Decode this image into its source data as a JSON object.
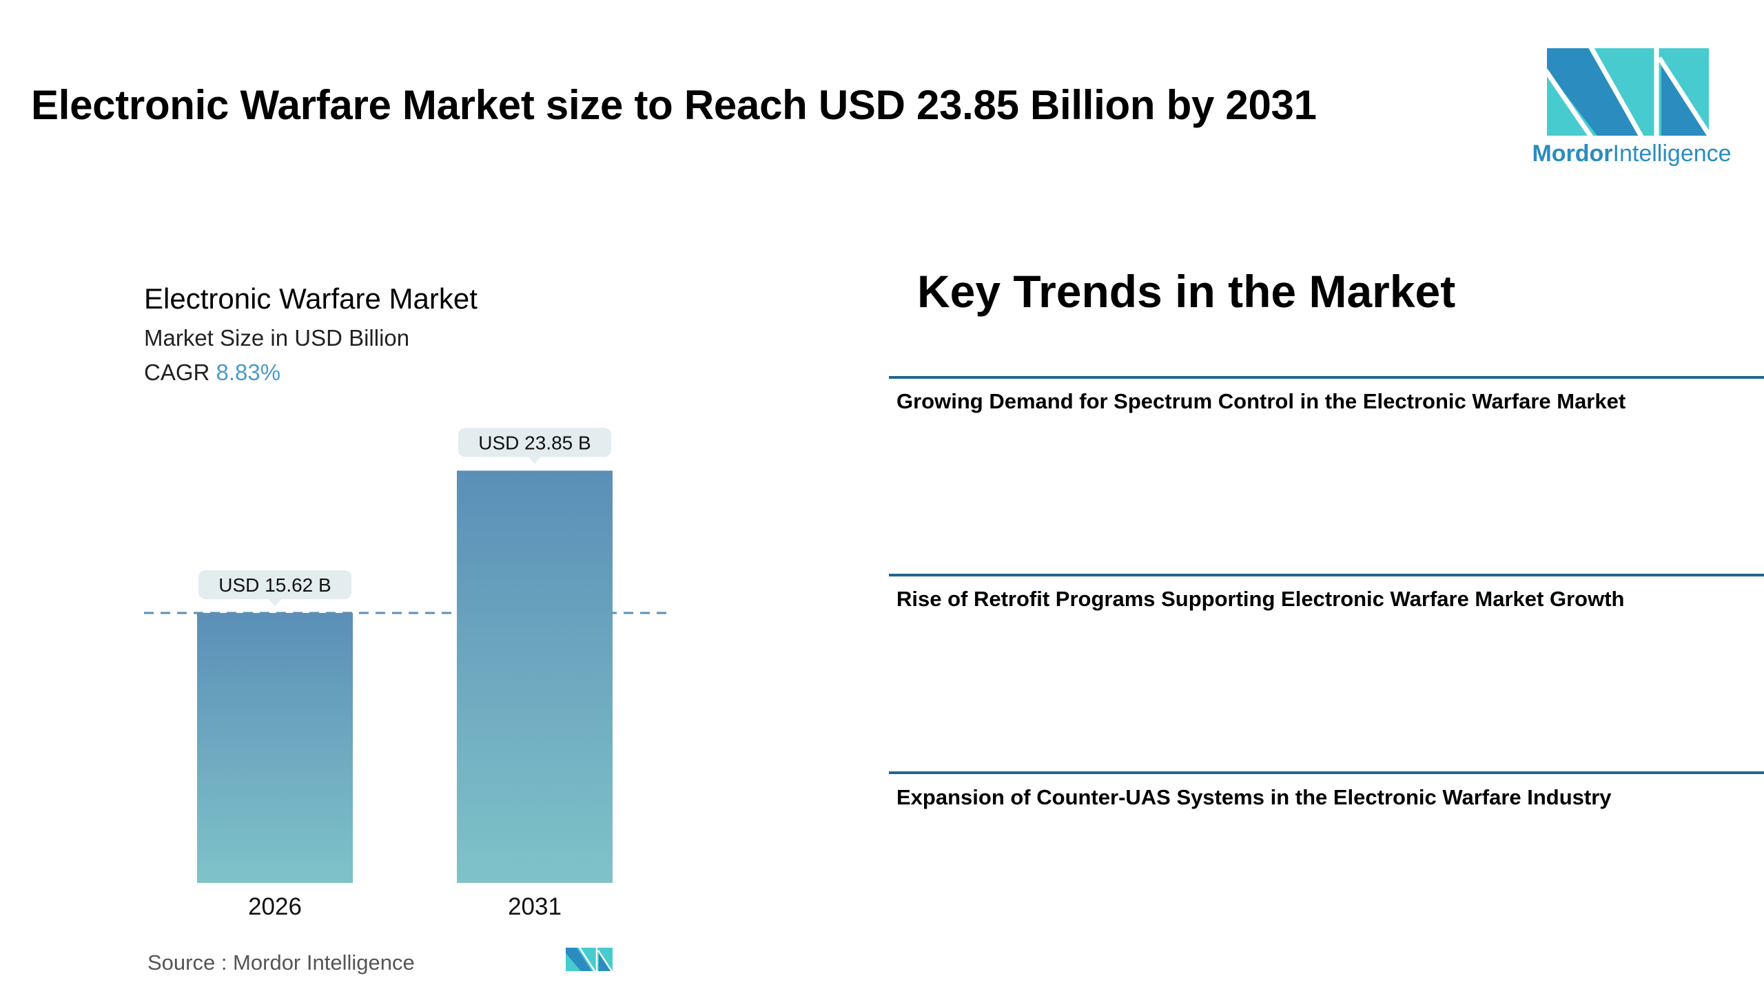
{
  "header": {
    "title": "Electronic Warfare Market size to Reach USD 23.85 Billion by 2031"
  },
  "logo": {
    "text_bold": "Mordor",
    "text_light": "Intelligence",
    "colors": {
      "dark": "#2b8cc0",
      "light": "#48cbcf"
    }
  },
  "chart_data": {
    "type": "bar",
    "title": "Electronic Warfare Market",
    "subtitle": "Market Size in USD Billion",
    "cagr_label": "CAGR",
    "cagr_value": "8.83%",
    "categories": [
      "2026",
      "2031"
    ],
    "values": [
      15.62,
      23.85
    ],
    "data_labels": [
      "USD 15.62 B",
      "USD 23.85 B"
    ],
    "reference_line": 15.62,
    "ylim": [
      0,
      24
    ],
    "grid": false,
    "colors": {
      "bar_top": "#5b8fb7",
      "bar_bottom": "#7fc3c9",
      "callout_bg": "#e3ecef",
      "dash": "#5b8fb7"
    }
  },
  "source": {
    "text": "Source :  Mordor Intelligence"
  },
  "trends": {
    "title": "Key Trends in the Market",
    "items": [
      {
        "label": "Growing Demand for Spectrum Control in the Electronic Warfare Market"
      },
      {
        "label": "Rise of Retrofit Programs Supporting Electronic Warfare Market Growth"
      },
      {
        "label": "Expansion of Counter-UAS Systems in the Electronic Warfare Industry"
      }
    ]
  }
}
